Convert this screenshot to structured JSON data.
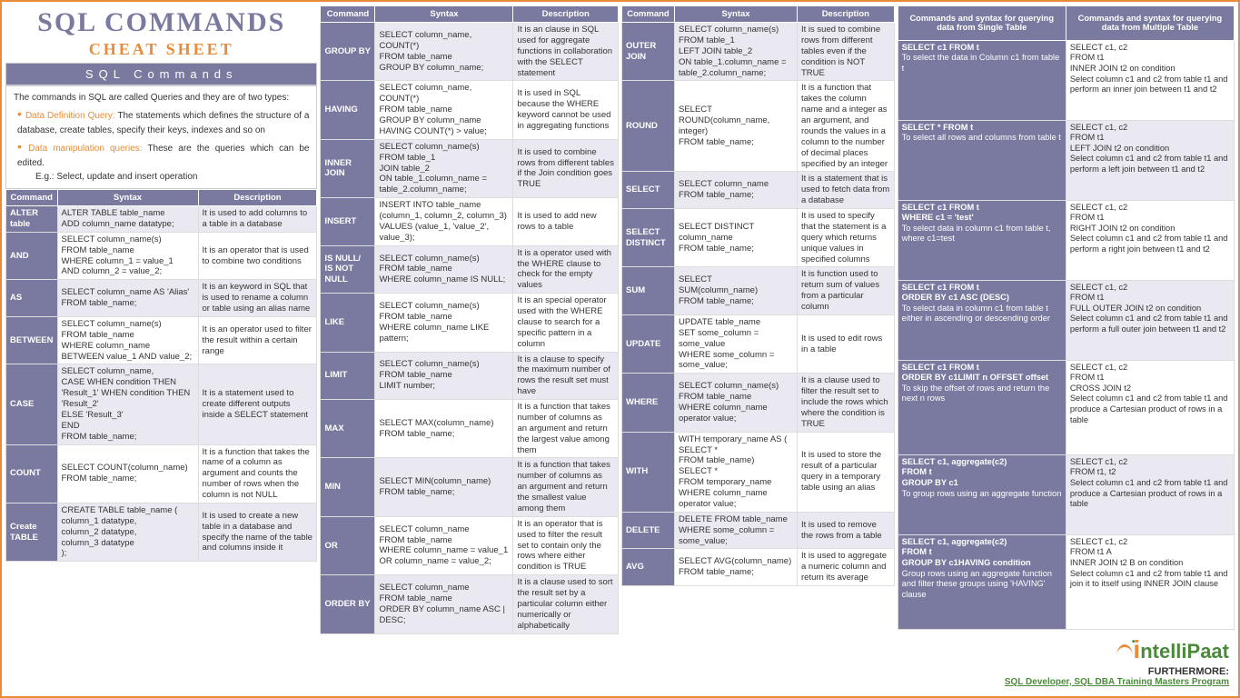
{
  "header": {
    "main_title": "SQL COMMANDS",
    "sub_title": "CHEAT SHEET",
    "section_label": "SQL Commands"
  },
  "intro": {
    "lead": "The commands in SQL are called Queries and they are of two types:",
    "item1_label": "Data Definition Query:",
    "item1_text": " The statements which defines the structure of a database, create tables, specify their keys, indexes and so on",
    "item2_label": "Data manipulation queries:",
    "item2_text": " These are the queries which can be edited.",
    "item2_eg": "E.g.: Select, update and insert operation"
  },
  "table_headers": {
    "cmd": "Command",
    "syn": "Syntax",
    "desc": "Description"
  },
  "tbl1": [
    {
      "cmd": "ALTER table",
      "syn": "ALTER TABLE table_name\nADD column_name datatype;",
      "desc": "It is used to add columns to a table in a database"
    },
    {
      "cmd": "AND",
      "syn": "SELECT column_name(s)\nFROM table_name\nWHERE column_1 = value_1\nAND column_2 = value_2;",
      "desc": "It is an operator that is used to combine two conditions"
    },
    {
      "cmd": "AS",
      "syn": "SELECT column_name AS 'Alias'\nFROM table_name;",
      "desc": "It is an keyword in SQL that is used to rename a column or table using an alias name"
    },
    {
      "cmd": "BETWEEN",
      "syn": "SELECT column_name(s)\nFROM table_name\nWHERE column_name\nBETWEEN value_1 AND value_2;",
      "desc": "It is an operator used to filter the result within a certain range"
    },
    {
      "cmd": "CASE",
      "syn": "SELECT column_name,\nCASE   WHEN condition THEN 'Result_1'   WHEN condition THEN 'Result_2'\nELSE 'Result_3'\nEND\nFROM table_name;",
      "desc": "It is a statement used to create different outputs inside a SELECT statement"
    },
    {
      "cmd": "COUNT",
      "syn": "SELECT COUNT(column_name)\nFROM table_name;",
      "desc": "It is a function that takes the name of a column as argument and counts the number of rows when the column is not NULL"
    },
    {
      "cmd": "Create TABLE",
      "syn": "CREATE TABLE table_name (  column_1 datatype,\ncolumn_2 datatype,\ncolumn_3 datatype\n);",
      "desc": "It is used to create a new table in a database and specify the name of the table and columns inside it"
    }
  ],
  "tbl2": [
    {
      "cmd": "GROUP BY",
      "syn": "SELECT column_name, COUNT(*)\nFROM table_name\nGROUP BY column_name;",
      "desc": "It is an clause in SQL used for aggregate functions in collaboration with the SELECT statement"
    },
    {
      "cmd": "HAVING",
      "syn": "SELECT column_name, COUNT(*)\nFROM table_name\nGROUP BY column_name\nHAVING COUNT(*) > value;",
      "desc": "It is used in SQL because the WHERE keyword cannot be used in aggregating functions"
    },
    {
      "cmd": "INNER JOIN",
      "syn": "SELECT column_name(s)\nFROM table_1\nJOIN table_2\nON table_1.column_name = table_2.column_name;",
      "desc": "It is used to combine rows from different tables if the Join condition goes TRUE"
    },
    {
      "cmd": "INSERT",
      "syn": "INSERT INTO table_name (column_1, column_2, column_3) VALUES (value_1, 'value_2', value_3);",
      "desc": "It is used to add new rows to a table"
    },
    {
      "cmd": "IS NULL/ IS NOT NULL",
      "syn": "SELECT column_name(s)\nFROM table_name\nWHERE column_name IS NULL;",
      "desc": "It is a operator used with the WHERE clause to check for the empty values"
    },
    {
      "cmd": "LIKE",
      "syn": "SELECT column_name(s)\nFROM table_name\nWHERE column_name LIKE pattern;",
      "desc": "It is an special operator used with the WHERE clause to search for a specific pattern in a column"
    },
    {
      "cmd": "LIMIT",
      "syn": "SELECT column_name(s)\nFROM table_name\nLIMIT number;",
      "desc": "It is a clause to specify the maximum number of rows the result set must have"
    },
    {
      "cmd": "MAX",
      "syn": "SELECT MAX(column_name)\nFROM table_name;",
      "desc": "It is a function that takes number of columns as an argument and return the largest value among them"
    },
    {
      "cmd": "MIN",
      "syn": "SELECT MIN(column_name)\nFROM table_name;",
      "desc": "It is a function that takes number of columns as an argument and return the smallest value among them"
    },
    {
      "cmd": "OR",
      "syn": "SELECT column_name\nFROM table_name\nWHERE column_name = value_1\nOR column_name = value_2;",
      "desc": "It is an operator that is used to filter the result set to contain only the rows where either condition is TRUE"
    },
    {
      "cmd": "ORDER BY",
      "syn": "SELECT column_name\nFROM table_name\nORDER BY column_name ASC | DESC;",
      "desc": "It is a clause used to sort the result set by a particular column either numerically or alphabetically"
    }
  ],
  "tbl3": [
    {
      "cmd": "OUTER JOIN",
      "syn": "SELECT column_name(s)\nFROM table_1\nLEFT JOIN table_2\nON table_1.column_name = table_2.column_name;",
      "desc": "It is sued to combine rows from different tables even if the condition is NOT TRUE"
    },
    {
      "cmd": "ROUND",
      "syn": "SELECT ROUND(column_name, integer)\nFROM table_name;",
      "desc": "It is a function that takes the column name and a integer as an argument, and rounds the values in a column to the number of decimal places specified by an integer"
    },
    {
      "cmd": "SELECT",
      "syn": "SELECT column_name\nFROM table_name;",
      "desc": "It is a statement that is used to fetch data from a database"
    },
    {
      "cmd": "SELECT DISTINCT",
      "syn": "SELECT DISTINCT column_name\nFROM table_name;",
      "desc": "It is used to specify that the statement is a query which returns unique values in specified columns"
    },
    {
      "cmd": "SUM",
      "syn": "SELECT SUM(column_name)\nFROM table_name;",
      "desc": "It is function used to return sum of values from a particular column"
    },
    {
      "cmd": "UPDATE",
      "syn": "UPDATE table_name\nSET some_column = some_value\nWHERE some_column = some_value;",
      "desc": "It is used to edit rows in a table"
    },
    {
      "cmd": "WHERE",
      "syn": "SELECT column_name(s)\nFROM table_name\nWHERE column_name operator value;",
      "desc": "It is a clause used to filter the result set to include the rows which where the condition is TRUE"
    },
    {
      "cmd": "WITH",
      "syn": "WITH temporary_name AS (\nSELECT *\nFROM table_name)\nSELECT *\nFROM temporary_name\nWHERE column_name operator value;",
      "desc": "It is used to store the result of a particular query in a temporary table using an alias"
    },
    {
      "cmd": "DELETE",
      "syn": "DELETE FROM table_name\nWHERE some_column = some_value;",
      "desc": "It is used to remove the rows from a table"
    },
    {
      "cmd": "AVG",
      "syn": "SELECT AVG(column_name)\nFROM table_name;",
      "desc": "It is used to aggregate a numeric column and return its average"
    }
  ],
  "query_headers": {
    "single": "Commands and syntax for querying data from Single Table",
    "multi": "Commands and syntax for querying data from Multiple Table"
  },
  "queries": [
    {
      "lb": "SELECT c1 FROM t",
      "ld": "To select the data in Column c1 from table t",
      "rs": "SELECT c1, c2\nFROM t1\nINNER JOIN t2 on condition",
      "rd": "Select column c1 and c2 from table t1 and perform an inner join between t1 and t2"
    },
    {
      "lb": "SELECT * FROM t",
      "ld": "To select all rows and columns from table t",
      "rs": "SELECT c1, c2\nFROM t1\nLEFT JOIN t2 on condition",
      "rd": "Select column c1 and c2 from table t1 and perform a left join between t1 and t2"
    },
    {
      "lb": "SELECT c1 FROM t\nWHERE c1 = 'test'",
      "ld": "To select data in column c1 from table t, where c1=test",
      "rs": "SELECT c1, c2\nFROM t1\nRIGHT JOIN t2 on condition",
      "rd": "Select column c1 and c2 from table t1 and perform a right join between t1 and t2"
    },
    {
      "lb": "SELECT c1 FROM t\nORDER BY c1 ASC (DESC)",
      "ld": "To select data in column c1 from table t either in ascending or descending order",
      "rs": "SELECT c1, c2\nFROM t1\nFULL OUTER JOIN t2 on condition",
      "rd": "Select column c1 and c2 from table t1 and perform a full outer join between t1 and t2"
    },
    {
      "lb": "SELECT c1 FROM t\nORDER BY c1LIMIT n OFFSET offset",
      "ld": "To skip the offset of rows and return the next n rows",
      "rs": "SELECT c1, c2\nFROM t1\nCROSS JOIN t2",
      "rd": "Select column c1 and c2 from table t1 and produce a Cartesian product of rows in a table"
    },
    {
      "lb": "SELECT c1, aggregate(c2)\nFROM t\nGROUP BY c1",
      "ld": "To group rows using an aggregate function",
      "rs": "SELECT c1, c2\nFROM t1, t2",
      "rd": "Select column c1 and c2 from table t1 and produce a Cartesian product of rows in a table"
    },
    {
      "lb": "SELECT c1, aggregate(c2)\nFROM t\nGROUP BY c1HAVING condition",
      "ld": "Group rows using an aggregate function and filter these groups using 'HAVING' clause",
      "rs": "SELECT c1, c2\nFROM t1 A\nINNER JOIN t2 B on condition",
      "rd": "Select column c1 and c2 from table t1 and join it to itself using INNER JOIN clause"
    }
  ],
  "footer": {
    "logo_prefix": "i",
    "logo_text": "ntelliPaat",
    "furthermore": "FURTHERMORE:",
    "link": "SQL Developer, SQL DBA Training Masters Program"
  }
}
